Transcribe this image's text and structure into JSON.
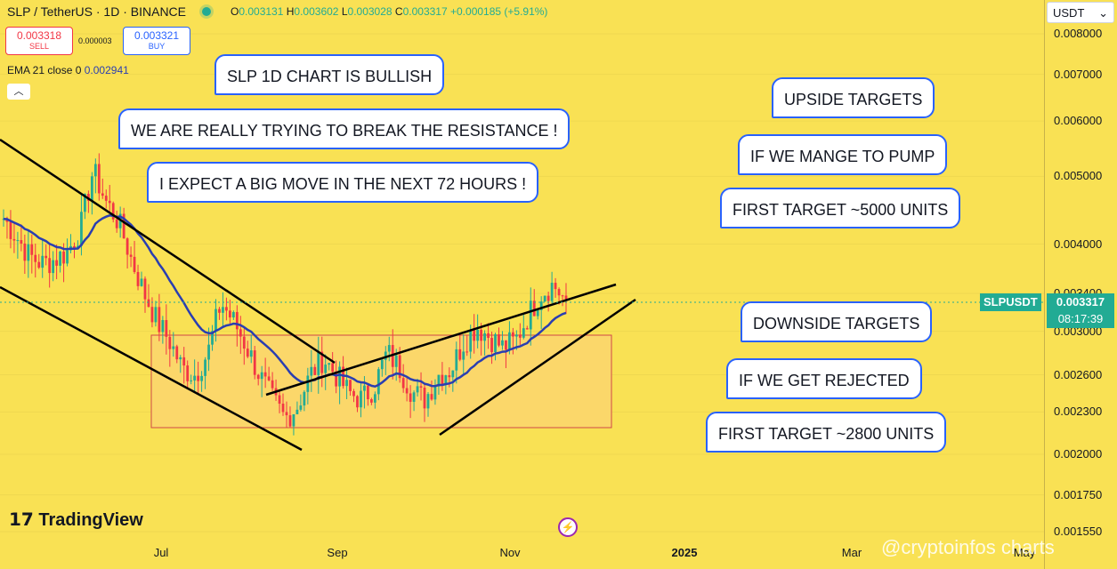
{
  "header": {
    "symbol": "SLP / TetherUS · 1D · BINANCE",
    "o_label": "O",
    "o": "0.003131",
    "h_label": "H",
    "h": "0.003602",
    "l_label": "L",
    "l": "0.003028",
    "c_label": "C",
    "c": "0.003317",
    "change": "+0.000185 (+5.91%)"
  },
  "trade": {
    "sell_price": "0.003318",
    "sell_label": "SELL",
    "spread": "0.000003",
    "buy_price": "0.003321",
    "buy_label": "BUY"
  },
  "indicator": {
    "label": "EMA 21 close 0",
    "value": "0.002941"
  },
  "currency": "USDT",
  "price_label": {
    "symbol": "SLPUSDT",
    "price": "0.003317",
    "countdown": "08:17:39"
  },
  "annotations": {
    "a1": "SLP 1D CHART IS BULLISH",
    "a2": "WE ARE REALLY TRYING TO BREAK THE RESISTANCE !",
    "a3": "I EXPECT A BIG MOVE IN THE NEXT 72 HOURS !",
    "a4": "UPSIDE TARGETS",
    "a5": "IF WE MANGE TO PUMP",
    "a6": "FIRST TARGET ~5000 UNITS",
    "a7": "DOWNSIDE TARGETS",
    "a8": "IF WE GET REJECTED",
    "a9": "FIRST TARGET ~2800 UNITS"
  },
  "branding": {
    "logo": "TradingView",
    "watermark": "@cryptoinfos charts"
  },
  "colors": {
    "background": "#f9e154",
    "up": "#22ab94",
    "down": "#f23645",
    "ema": "#2a3eb1",
    "box": "#fbd76a",
    "bubble_border": "#2962ff"
  },
  "chart_data": {
    "type": "candlestick",
    "title": "SLP / TetherUS · 1D · BINANCE",
    "y_scale": "log",
    "ylim": [
      0.00145,
      0.0085
    ],
    "y_ticks": [
      "0.008000",
      "0.007000",
      "0.006000",
      "0.005000",
      "0.004000",
      "0.003400",
      "0.003000",
      "0.002600",
      "0.002300",
      "0.002000",
      "0.001750",
      "0.001550"
    ],
    "x_ticks": [
      {
        "label": "Jul",
        "bold": false
      },
      {
        "label": "Sep",
        "bold": false
      },
      {
        "label": "Nov",
        "bold": false
      },
      {
        "label": "2025",
        "bold": true
      },
      {
        "label": "Mar",
        "bold": false
      },
      {
        "label": "May",
        "bold": false
      }
    ],
    "last_price": 0.003317,
    "range_box": [
      0.00225,
      0.00298
    ],
    "approx_close_path": [
      0.00435,
      0.0041,
      0.00385,
      0.00375,
      0.0038,
      0.0039,
      0.0042,
      0.0051,
      0.0046,
      0.0043,
      0.0038,
      0.0034,
      0.0031,
      0.0029,
      0.00265,
      0.0026,
      0.0028,
      0.0033,
      0.0031,
      0.00285,
      0.0026,
      0.0024,
      0.00225,
      0.00235,
      0.0026,
      0.00275,
      0.0026,
      0.00245,
      0.0024,
      0.0025,
      0.0028,
      0.00265,
      0.00245,
      0.0024,
      0.0026,
      0.00265,
      0.0029,
      0.00305,
      0.00295,
      0.00285,
      0.0029,
      0.00315,
      0.0034,
      0.0035,
      0.00331
    ]
  }
}
